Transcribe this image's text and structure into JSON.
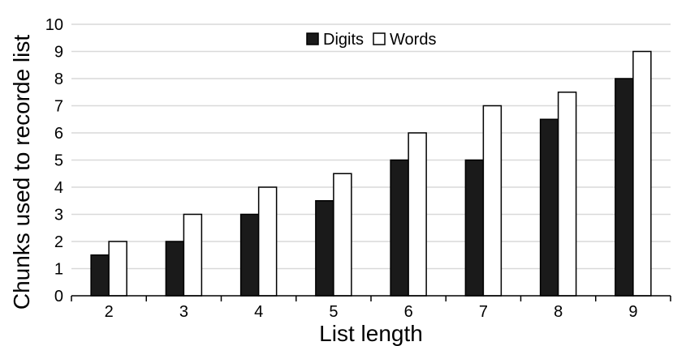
{
  "chart_data": {
    "type": "bar",
    "categories": [
      "2",
      "3",
      "4",
      "5",
      "6",
      "7",
      "8",
      "9"
    ],
    "series": [
      {
        "name": "Digits",
        "values": [
          1.5,
          2,
          3,
          3.5,
          5,
          5,
          6.5,
          8
        ],
        "color": "#1a1a1a"
      },
      {
        "name": "Words",
        "values": [
          2,
          3,
          4,
          4.5,
          6,
          7,
          7.5,
          9
        ],
        "color": "#ffffff"
      }
    ],
    "xlabel": "List length",
    "ylabel": "Chunks used to recorde list",
    "ylim": [
      0,
      10
    ],
    "yticks": [
      "0",
      "1",
      "2",
      "3",
      "4",
      "5",
      "6",
      "7",
      "8",
      "9",
      "10"
    ],
    "grid": true,
    "legend_position": "top-center",
    "colors": {
      "gridline": "#d9d9d9",
      "axis": "#000000",
      "bar_edge": "#000000"
    }
  }
}
